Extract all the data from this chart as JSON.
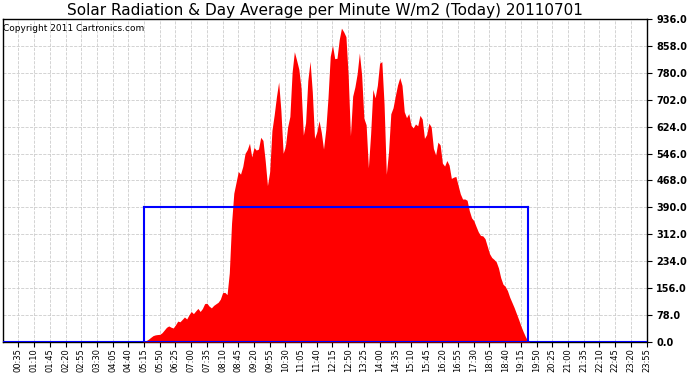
{
  "title": "Solar Radiation & Day Average per Minute W/m2 (Today) 20110701",
  "copyright": "Copyright 2011 Cartronics.com",
  "ymin": 0.0,
  "ymax": 936.0,
  "yticks": [
    0.0,
    78.0,
    156.0,
    234.0,
    312.0,
    390.0,
    468.0,
    546.0,
    624.0,
    702.0,
    780.0,
    858.0,
    936.0
  ],
  "day_average": 390.0,
  "background_color": "#ffffff",
  "fill_color": "#ff0000",
  "avg_line_color": "#0000ff",
  "grid_color": "#cccccc",
  "grid_linestyle": "--",
  "title_fontsize": 11,
  "copyright_fontsize": 6.5,
  "tick_fontsize": 6,
  "ytick_fontsize": 7,
  "n_minutes": 1440,
  "step_minutes": 5
}
